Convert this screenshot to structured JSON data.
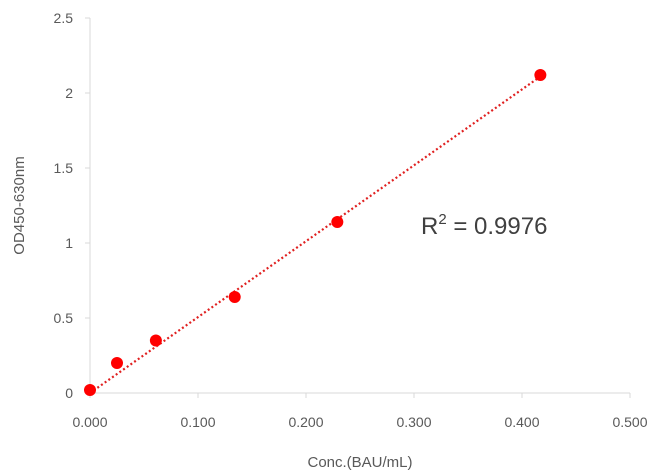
{
  "chart_data": {
    "type": "scatter",
    "title": "",
    "xlabel": "Conc.(BAU/mL)",
    "ylabel": "OD450-630nm",
    "xlim": [
      0,
      0.5
    ],
    "ylim": [
      0,
      2.5
    ],
    "x_ticks": [
      "0.000",
      "0.100",
      "0.200",
      "0.300",
      "0.400",
      "0.500"
    ],
    "y_ticks": [
      "0",
      "0.5",
      "1",
      "1.5",
      "2",
      "2.5"
    ],
    "grid": false,
    "legend": "none",
    "series": [
      {
        "x": [
          0.0,
          0.025,
          0.061,
          0.134,
          0.229,
          0.417
        ],
        "y": [
          0.02,
          0.2,
          0.35,
          0.64,
          1.14,
          2.12
        ],
        "color": "#ff0000",
        "marker": "circle",
        "trendline": {
          "type": "linear",
          "style": "dotted",
          "color": "#e02020",
          "x_range": [
            0.0,
            0.417
          ],
          "y_range": [
            0.0,
            2.11
          ]
        }
      }
    ],
    "annotation": {
      "prefix": "R",
      "superscript": "2",
      "text": " = 0.9976"
    }
  }
}
